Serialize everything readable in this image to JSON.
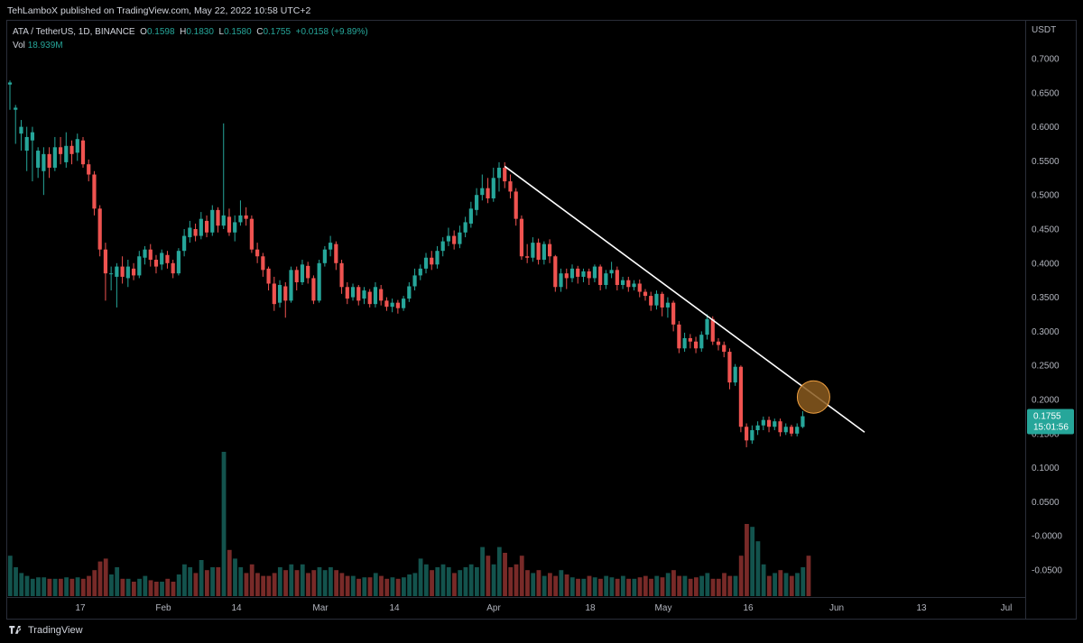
{
  "header": {
    "publisher": "TehLamboX published on TradingView.com, May 22, 2022 10:58 UTC+2"
  },
  "legend": {
    "symbol": "ATA / TetherUS, 1D, BINANCE",
    "o_label": "O",
    "o_value": "0.1598",
    "h_label": "H",
    "h_value": "0.1830",
    "l_label": "L",
    "l_value": "0.1580",
    "c_label": "C",
    "c_value": "0.1755",
    "change": "+0.0158 (+9.89%)",
    "vol_label": "Vol",
    "vol_value": "18.939M"
  },
  "colors": {
    "up": "#26a69a",
    "down": "#ef5350",
    "trendline": "#ffffff",
    "circle_fill": "#8a5a1e",
    "circle_stroke": "#f0a040"
  },
  "footer": {
    "brand": "TradingView"
  },
  "chart_data": {
    "type": "candlestick",
    "currency": "USDT",
    "ylim": [
      -0.065,
      0.72
    ],
    "y_ticks": [
      "0.7000",
      "0.6500",
      "0.6000",
      "0.5500",
      "0.5000",
      "0.4500",
      "0.4000",
      "0.3500",
      "0.3000",
      "0.2500",
      "0.2000",
      "0.1500",
      "0.1000",
      "0.0500",
      "-0.0000",
      "-0.0500"
    ],
    "x_ticks": [
      "17",
      "Feb",
      "14",
      "Mar",
      "14",
      "Apr",
      "18",
      "May",
      "16",
      "Jun",
      "13",
      "Jul"
    ],
    "last_price": {
      "value": "0.1755",
      "countdown": "15:01:56"
    },
    "candles": [
      [
        0.662,
        0.665,
        0.625,
        0.668
      ],
      [
        0.625,
        0.628,
        0.575,
        0.632
      ],
      [
        0.59,
        0.6,
        0.565,
        0.61
      ],
      [
        0.565,
        0.585,
        0.535,
        0.6
      ],
      [
        0.58,
        0.592,
        0.52,
        0.6
      ],
      [
        0.54,
        0.565,
        0.525,
        0.57
      ],
      [
        0.535,
        0.56,
        0.5,
        0.57
      ],
      [
        0.56,
        0.54,
        0.525,
        0.57
      ],
      [
        0.54,
        0.57,
        0.535,
        0.585
      ],
      [
        0.57,
        0.56,
        0.545,
        0.585
      ],
      [
        0.548,
        0.572,
        0.54,
        0.592
      ],
      [
        0.572,
        0.56,
        0.545,
        0.58
      ],
      [
        0.562,
        0.582,
        0.55,
        0.59
      ],
      [
        0.58,
        0.545,
        0.54,
        0.585
      ],
      [
        0.545,
        0.53,
        0.52,
        0.552
      ],
      [
        0.53,
        0.48,
        0.47,
        0.535
      ],
      [
        0.48,
        0.42,
        0.41,
        0.485
      ],
      [
        0.42,
        0.385,
        0.345,
        0.43
      ],
      [
        0.385,
        0.385,
        0.36,
        0.395
      ],
      [
        0.38,
        0.395,
        0.335,
        0.4
      ],
      [
        0.395,
        0.38,
        0.37,
        0.41
      ],
      [
        0.378,
        0.395,
        0.365,
        0.405
      ],
      [
        0.392,
        0.382,
        0.375,
        0.4
      ],
      [
        0.382,
        0.41,
        0.378,
        0.418
      ],
      [
        0.408,
        0.42,
        0.398,
        0.425
      ],
      [
        0.42,
        0.405,
        0.395,
        0.428
      ],
      [
        0.405,
        0.395,
        0.385,
        0.412
      ],
      [
        0.398,
        0.415,
        0.39,
        0.42
      ],
      [
        0.412,
        0.4,
        0.392,
        0.418
      ],
      [
        0.4,
        0.385,
        0.378,
        0.405
      ],
      [
        0.385,
        0.418,
        0.382,
        0.422
      ],
      [
        0.418,
        0.44,
        0.41,
        0.45
      ],
      [
        0.438,
        0.452,
        0.43,
        0.462
      ],
      [
        0.45,
        0.44,
        0.432,
        0.458
      ],
      [
        0.44,
        0.465,
        0.435,
        0.475
      ],
      [
        0.462,
        0.445,
        0.438,
        0.47
      ],
      [
        0.445,
        0.478,
        0.44,
        0.485
      ],
      [
        0.478,
        0.455,
        0.445,
        0.482
      ],
      [
        0.455,
        0.47,
        0.45,
        0.605
      ],
      [
        0.468,
        0.445,
        0.44,
        0.48
      ],
      [
        0.445,
        0.46,
        0.432,
        0.47
      ],
      [
        0.46,
        0.47,
        0.455,
        0.492
      ],
      [
        0.47,
        0.465,
        0.455,
        0.482
      ],
      [
        0.465,
        0.42,
        0.415,
        0.47
      ],
      [
        0.42,
        0.41,
        0.4,
        0.43
      ],
      [
        0.41,
        0.39,
        0.38,
        0.415
      ],
      [
        0.392,
        0.37,
        0.36,
        0.395
      ],
      [
        0.37,
        0.34,
        0.33,
        0.38
      ],
      [
        0.342,
        0.368,
        0.335,
        0.375
      ],
      [
        0.366,
        0.345,
        0.32,
        0.372
      ],
      [
        0.345,
        0.39,
        0.342,
        0.395
      ],
      [
        0.39,
        0.372,
        0.36,
        0.395
      ],
      [
        0.372,
        0.398,
        0.368,
        0.405
      ],
      [
        0.396,
        0.378,
        0.37,
        0.402
      ],
      [
        0.378,
        0.345,
        0.34,
        0.382
      ],
      [
        0.345,
        0.4,
        0.342,
        0.405
      ],
      [
        0.4,
        0.42,
        0.395,
        0.425
      ],
      [
        0.42,
        0.43,
        0.41,
        0.44
      ],
      [
        0.428,
        0.4,
        0.39,
        0.432
      ],
      [
        0.4,
        0.365,
        0.355,
        0.405
      ],
      [
        0.365,
        0.348,
        0.34,
        0.372
      ],
      [
        0.35,
        0.365,
        0.345,
        0.37
      ],
      [
        0.365,
        0.345,
        0.338,
        0.368
      ],
      [
        0.348,
        0.36,
        0.34,
        0.365
      ],
      [
        0.358,
        0.34,
        0.335,
        0.362
      ],
      [
        0.34,
        0.365,
        0.335,
        0.372
      ],
      [
        0.362,
        0.345,
        0.338,
        0.368
      ],
      [
        0.345,
        0.336,
        0.33,
        0.35
      ],
      [
        0.336,
        0.342,
        0.328,
        0.348
      ],
      [
        0.342,
        0.334,
        0.326,
        0.346
      ],
      [
        0.334,
        0.348,
        0.33,
        0.352
      ],
      [
        0.348,
        0.366,
        0.343,
        0.372
      ],
      [
        0.366,
        0.382,
        0.36,
        0.392
      ],
      [
        0.382,
        0.392,
        0.375,
        0.398
      ],
      [
        0.392,
        0.408,
        0.385,
        0.415
      ],
      [
        0.408,
        0.398,
        0.39,
        0.418
      ],
      [
        0.398,
        0.418,
        0.392,
        0.425
      ],
      [
        0.418,
        0.432,
        0.41,
        0.438
      ],
      [
        0.432,
        0.44,
        0.425,
        0.452
      ],
      [
        0.44,
        0.428,
        0.42,
        0.448
      ],
      [
        0.428,
        0.445,
        0.422,
        0.455
      ],
      [
        0.445,
        0.46,
        0.438,
        0.468
      ],
      [
        0.458,
        0.48,
        0.452,
        0.49
      ],
      [
        0.478,
        0.5,
        0.47,
        0.51
      ],
      [
        0.5,
        0.51,
        0.492,
        0.53
      ],
      [
        0.51,
        0.495,
        0.488,
        0.525
      ],
      [
        0.495,
        0.525,
        0.49,
        0.54
      ],
      [
        0.525,
        0.54,
        0.505,
        0.548
      ],
      [
        0.54,
        0.52,
        0.51,
        0.548
      ],
      [
        0.52,
        0.505,
        0.495,
        0.53
      ],
      [
        0.505,
        0.465,
        0.455,
        0.51
      ],
      [
        0.465,
        0.41,
        0.405,
        0.47
      ],
      [
        0.41,
        0.408,
        0.4,
        0.428
      ],
      [
        0.408,
        0.43,
        0.402,
        0.438
      ],
      [
        0.43,
        0.405,
        0.398,
        0.436
      ],
      [
        0.405,
        0.428,
        0.398,
        0.432
      ],
      [
        0.428,
        0.41,
        0.4,
        0.435
      ],
      [
        0.41,
        0.365,
        0.358,
        0.412
      ],
      [
        0.365,
        0.385,
        0.358,
        0.392
      ],
      [
        0.385,
        0.378,
        0.362,
        0.392
      ],
      [
        0.378,
        0.392,
        0.372,
        0.398
      ],
      [
        0.392,
        0.38,
        0.37,
        0.396
      ],
      [
        0.38,
        0.388,
        0.372,
        0.392
      ],
      [
        0.388,
        0.378,
        0.368,
        0.392
      ],
      [
        0.378,
        0.395,
        0.372,
        0.398
      ],
      [
        0.395,
        0.368,
        0.36,
        0.398
      ],
      [
        0.368,
        0.385,
        0.362,
        0.39
      ],
      [
        0.385,
        0.39,
        0.378,
        0.402
      ],
      [
        0.39,
        0.368,
        0.36,
        0.395
      ],
      [
        0.368,
        0.375,
        0.362,
        0.38
      ],
      [
        0.375,
        0.365,
        0.358,
        0.38
      ],
      [
        0.365,
        0.37,
        0.36,
        0.375
      ],
      [
        0.37,
        0.358,
        0.35,
        0.376
      ],
      [
        0.358,
        0.352,
        0.345,
        0.362
      ],
      [
        0.352,
        0.338,
        0.33,
        0.358
      ],
      [
        0.338,
        0.355,
        0.332,
        0.36
      ],
      [
        0.355,
        0.335,
        0.322,
        0.358
      ],
      [
        0.335,
        0.342,
        0.32,
        0.35
      ],
      [
        0.342,
        0.31,
        0.3,
        0.345
      ],
      [
        0.31,
        0.275,
        0.268,
        0.315
      ],
      [
        0.275,
        0.29,
        0.27,
        0.298
      ],
      [
        0.29,
        0.285,
        0.275,
        0.296
      ],
      [
        0.285,
        0.275,
        0.268,
        0.292
      ],
      [
        0.275,
        0.295,
        0.27,
        0.3
      ],
      [
        0.295,
        0.318,
        0.288,
        0.325
      ],
      [
        0.318,
        0.285,
        0.28,
        0.322
      ],
      [
        0.285,
        0.28,
        0.272,
        0.29
      ],
      [
        0.28,
        0.27,
        0.262,
        0.285
      ],
      [
        0.27,
        0.225,
        0.215,
        0.275
      ],
      [
        0.225,
        0.248,
        0.22,
        0.252
      ],
      [
        0.248,
        0.16,
        0.152,
        0.25
      ],
      [
        0.16,
        0.14,
        0.13,
        0.165
      ],
      [
        0.14,
        0.155,
        0.135,
        0.162
      ],
      [
        0.155,
        0.162,
        0.148,
        0.168
      ],
      [
        0.162,
        0.17,
        0.155,
        0.175
      ],
      [
        0.17,
        0.16,
        0.152,
        0.175
      ],
      [
        0.16,
        0.168,
        0.155,
        0.172
      ],
      [
        0.168,
        0.152,
        0.146,
        0.172
      ],
      [
        0.152,
        0.16,
        0.148,
        0.165
      ],
      [
        0.16,
        0.15,
        0.146,
        0.163
      ],
      [
        0.15,
        0.16,
        0.146,
        0.165
      ],
      [
        0.1598,
        0.1755,
        0.158,
        0.183
      ]
    ],
    "volume": [
      0.28,
      0.2,
      0.16,
      0.14,
      0.12,
      0.13,
      0.13,
      0.12,
      0.12,
      0.12,
      0.13,
      0.12,
      0.13,
      0.12,
      0.14,
      0.18,
      0.24,
      0.26,
      0.15,
      0.2,
      0.12,
      0.12,
      0.1,
      0.12,
      0.14,
      0.11,
      0.1,
      0.1,
      0.12,
      0.1,
      0.15,
      0.22,
      0.2,
      0.16,
      0.25,
      0.18,
      0.2,
      0.2,
      1.0,
      0.32,
      0.26,
      0.2,
      0.16,
      0.22,
      0.16,
      0.14,
      0.14,
      0.16,
      0.2,
      0.18,
      0.22,
      0.18,
      0.22,
      0.16,
      0.18,
      0.2,
      0.18,
      0.2,
      0.18,
      0.16,
      0.14,
      0.14,
      0.12,
      0.13,
      0.13,
      0.16,
      0.14,
      0.12,
      0.13,
      0.12,
      0.13,
      0.15,
      0.16,
      0.26,
      0.22,
      0.18,
      0.2,
      0.22,
      0.2,
      0.16,
      0.18,
      0.2,
      0.22,
      0.2,
      0.34,
      0.28,
      0.22,
      0.34,
      0.3,
      0.2,
      0.22,
      0.28,
      0.18,
      0.16,
      0.18,
      0.14,
      0.16,
      0.14,
      0.18,
      0.15,
      0.13,
      0.12,
      0.12,
      0.14,
      0.13,
      0.12,
      0.14,
      0.13,
      0.12,
      0.14,
      0.12,
      0.12,
      0.13,
      0.14,
      0.12,
      0.14,
      0.13,
      0.16,
      0.18,
      0.14,
      0.14,
      0.12,
      0.13,
      0.14,
      0.16,
      0.12,
      0.12,
      0.16,
      0.14,
      0.14,
      0.28,
      0.5,
      0.48,
      0.38,
      0.22,
      0.14,
      0.16,
      0.18,
      0.16,
      0.14,
      0.16,
      0.2,
      0.28
    ],
    "trendline": {
      "start": {
        "i": 88,
        "price": 0.542
      },
      "end": {
        "i": 152,
        "price": 0.152
      }
    },
    "highlight_circle": {
      "i": 141,
      "price": 0.205
    }
  }
}
